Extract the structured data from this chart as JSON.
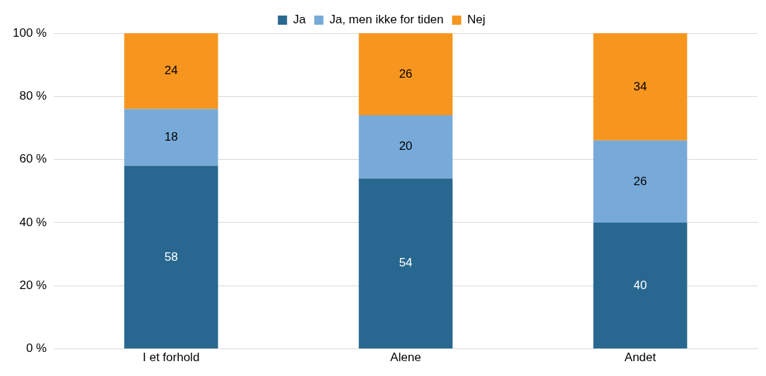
{
  "chart_data": {
    "type": "bar",
    "stacked": true,
    "categories": [
      "I et forhold",
      "Alene",
      "Andet"
    ],
    "series": [
      {
        "name": "Ja",
        "color": "#286890",
        "values": [
          58,
          54,
          40
        ]
      },
      {
        "name": "Ja, men ikke for tiden",
        "color": "#77aad8",
        "values": [
          18,
          20,
          26
        ]
      },
      {
        "name": "Nej",
        "color": "#f7961f",
        "values": [
          24,
          26,
          34
        ]
      }
    ],
    "ylim": [
      0,
      100
    ],
    "yticks": [
      {
        "value": 0,
        "label": "0 %"
      },
      {
        "value": 20,
        "label": "20 %"
      },
      {
        "value": 40,
        "label": "40 %"
      },
      {
        "value": 60,
        "label": "60 %"
      },
      {
        "value": 80,
        "label": "80 %"
      },
      {
        "value": 100,
        "label": "100 %"
      }
    ],
    "grid": "y",
    "legend": "top",
    "data_labels": true
  }
}
